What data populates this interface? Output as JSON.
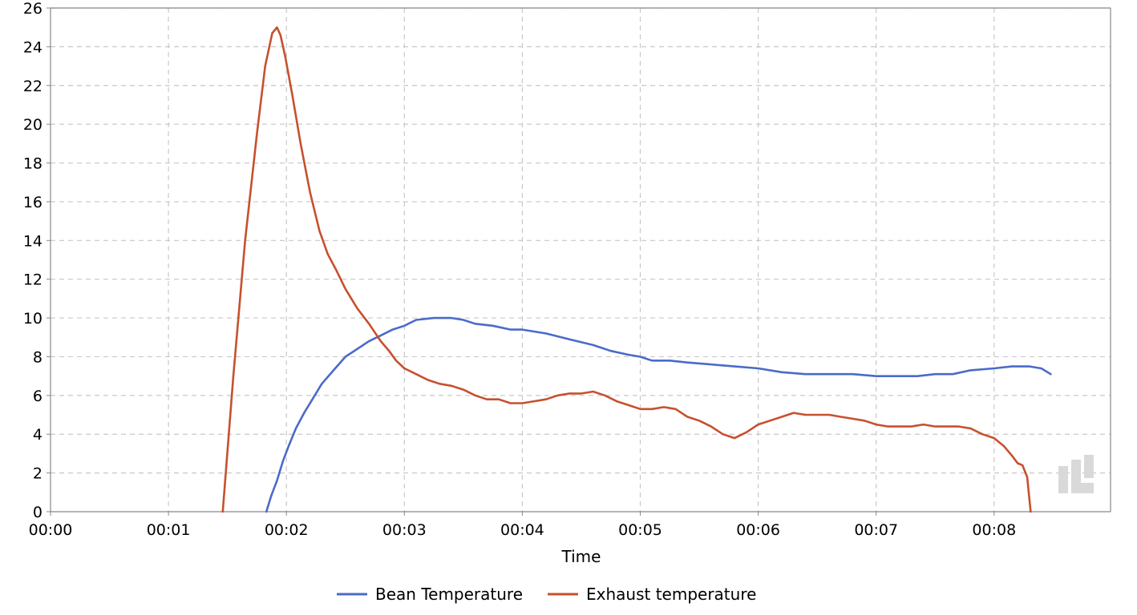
{
  "chart_data": {
    "type": "line",
    "title": "",
    "xlabel": "Time",
    "ylabel": "",
    "x_unit": "minutes",
    "xlim": [
      0,
      9.0
    ],
    "ylim": [
      0,
      26
    ],
    "grid": true,
    "legend_position": "bottom-center",
    "x_ticks": [
      "00:00",
      "00:01",
      "00:02",
      "00:03",
      "00:04",
      "00:05",
      "00:06",
      "00:07",
      "00:08"
    ],
    "y_ticks": [
      "0",
      "2",
      "4",
      "6",
      "8",
      "10",
      "12",
      "14",
      "16",
      "18",
      "20",
      "22",
      "24",
      "26"
    ],
    "series": [
      {
        "name": "Bean Temperature",
        "color": "#4a6bc8",
        "x": [
          1.83,
          1.87,
          1.92,
          1.97,
          2.02,
          2.08,
          2.15,
          2.22,
          2.3,
          2.4,
          2.5,
          2.6,
          2.7,
          2.8,
          2.9,
          3.0,
          3.1,
          3.25,
          3.4,
          3.5,
          3.6,
          3.75,
          3.9,
          4.0,
          4.2,
          4.4,
          4.6,
          4.75,
          4.9,
          5.0,
          5.1,
          5.25,
          5.4,
          5.6,
          5.8,
          6.0,
          6.2,
          6.4,
          6.6,
          6.8,
          7.0,
          7.2,
          7.35,
          7.5,
          7.65,
          7.8,
          8.0,
          8.15,
          8.3,
          8.4,
          8.48
        ],
        "values": [
          0,
          0.8,
          1.6,
          2.6,
          3.4,
          4.3,
          5.1,
          5.8,
          6.6,
          7.3,
          8.0,
          8.4,
          8.8,
          9.1,
          9.4,
          9.6,
          9.9,
          10.0,
          10.0,
          9.9,
          9.7,
          9.6,
          9.4,
          9.4,
          9.2,
          8.9,
          8.6,
          8.3,
          8.1,
          8.0,
          7.8,
          7.8,
          7.7,
          7.6,
          7.5,
          7.4,
          7.2,
          7.1,
          7.1,
          7.1,
          7.0,
          7.0,
          7.0,
          7.1,
          7.1,
          7.3,
          7.4,
          7.5,
          7.5,
          7.4,
          7.1
        ]
      },
      {
        "name": "Exhaust temperature",
        "color": "#c7502e",
        "x": [
          1.46,
          1.55,
          1.65,
          1.75,
          1.82,
          1.88,
          1.92,
          1.95,
          1.99,
          2.05,
          2.12,
          2.2,
          2.28,
          2.35,
          2.42,
          2.5,
          2.6,
          2.7,
          2.8,
          2.87,
          2.93,
          3.0,
          3.1,
          3.2,
          3.3,
          3.4,
          3.5,
          3.6,
          3.7,
          3.8,
          3.9,
          4.0,
          4.1,
          4.2,
          4.3,
          4.4,
          4.5,
          4.6,
          4.7,
          4.8,
          4.9,
          5.0,
          5.1,
          5.2,
          5.3,
          5.4,
          5.5,
          5.6,
          5.7,
          5.8,
          5.9,
          6.0,
          6.1,
          6.2,
          6.3,
          6.4,
          6.5,
          6.6,
          6.7,
          6.8,
          6.9,
          7.0,
          7.1,
          7.2,
          7.3,
          7.4,
          7.5,
          7.6,
          7.7,
          7.8,
          7.9,
          8.0,
          8.08,
          8.15,
          8.2,
          8.24,
          8.28,
          8.31
        ],
        "values": [
          0,
          7.0,
          14.0,
          19.5,
          23.0,
          24.7,
          25.0,
          24.6,
          23.5,
          21.5,
          19.0,
          16.5,
          14.5,
          13.3,
          12.5,
          11.5,
          10.5,
          9.7,
          8.8,
          8.3,
          7.8,
          7.4,
          7.1,
          6.8,
          6.6,
          6.5,
          6.3,
          6.0,
          5.8,
          5.8,
          5.6,
          5.6,
          5.7,
          5.8,
          6.0,
          6.1,
          6.1,
          6.2,
          6.0,
          5.7,
          5.5,
          5.3,
          5.3,
          5.4,
          5.3,
          4.9,
          4.7,
          4.4,
          4.0,
          3.8,
          4.1,
          4.5,
          4.7,
          4.9,
          5.1,
          5.0,
          5.0,
          5.0,
          4.9,
          4.8,
          4.7,
          4.5,
          4.4,
          4.4,
          4.4,
          4.5,
          4.4,
          4.4,
          4.4,
          4.3,
          4.0,
          3.8,
          3.4,
          2.9,
          2.5,
          2.4,
          1.8,
          0
        ]
      }
    ]
  },
  "watermark": "app-logo"
}
